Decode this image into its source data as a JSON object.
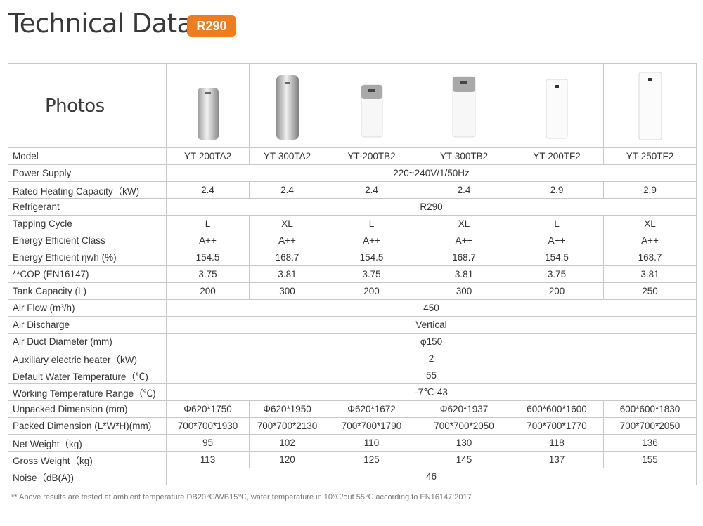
{
  "header": {
    "title": "Technical Data",
    "badge": "R290"
  },
  "photos_label": "Photos",
  "models": [
    "YT-200TA2",
    "YT-300TA2",
    "YT-200TB2",
    "YT-300TB2",
    "YT-200TF2",
    "YT-250TF2"
  ],
  "rows": [
    {
      "label": "Model",
      "values": [
        "YT-200TA2",
        "YT-300TA2",
        "YT-200TB2",
        "YT-300TB2",
        "YT-200TF2",
        "YT-250TF2"
      ]
    },
    {
      "label": "Power Supply",
      "span": "220~240V/1/50Hz"
    },
    {
      "label": "Rated Heating Capacity（kW)",
      "values": [
        "2.4",
        "2.4",
        "2.4",
        "2.4",
        "2.9",
        "2.9"
      ]
    },
    {
      "label": "Refrigerant",
      "span": "R290"
    },
    {
      "label": "Tapping Cycle",
      "values": [
        "L",
        "XL",
        "L",
        "XL",
        "L",
        "XL"
      ]
    },
    {
      "label": "Energy Efficient Class",
      "values": [
        "A++",
        "A++",
        "A++",
        "A++",
        "A++",
        "A++"
      ]
    },
    {
      "label": "Energy Efficient  ηwh (%)",
      "values": [
        "154.5",
        "168.7",
        "154.5",
        "168.7",
        "154.5",
        "168.7"
      ]
    },
    {
      "label": "**COP (EN16147)",
      "values": [
        "3.75",
        "3.81",
        "3.75",
        "3.81",
        "3.75",
        "3.81"
      ]
    },
    {
      "label": "Tank Capacity (L)",
      "values": [
        "200",
        "300",
        "200",
        "300",
        "200",
        "250"
      ]
    },
    {
      "label": "Air Flow (m³/h)",
      "span": "450"
    },
    {
      "label": "Air Discharge",
      "span": "Vertical"
    },
    {
      "label": "Air Duct Diameter (mm)",
      "span": "φ150"
    },
    {
      "label": "Auxiliary electric heater（kW)",
      "span": "2"
    },
    {
      "label": "Default Water Temperature（℃)",
      "span": "55"
    },
    {
      "label": "Working Temperature Range（℃)",
      "span": "-7℃-43"
    },
    {
      "label": "Unpacked Dimension (mm)",
      "values": [
        "Φ620*1750",
        "Φ620*1950",
        "Φ620*1672",
        "Φ620*1937",
        "600*600*1600",
        "600*600*1830"
      ]
    },
    {
      "label": "Packed Dimension (L*W*H)(mm)",
      "values": [
        "700*700*1930",
        "700*700*2130",
        "700*700*1790",
        "700*700*2050",
        "700*700*1770",
        "700*700*2050"
      ]
    },
    {
      "label": "Net Weight（kg)",
      "values": [
        "95",
        "102",
        "110",
        "130",
        "118",
        "136"
      ]
    },
    {
      "label": "Gross Weight（kg)",
      "values": [
        "113",
        "120",
        "125",
        "145",
        "137",
        "155"
      ]
    },
    {
      "label": "Noise（dB(A))",
      "span": "46"
    }
  ],
  "footnote": "** Above results are tested at ambient temperature DB20℃/WB15℃, water temperature in 10℃/out 55℃ according to EN16147:2017",
  "colors": {
    "badge": "#ee7d1f",
    "border": "#c8c8c8",
    "title": "#3a3a3a"
  }
}
